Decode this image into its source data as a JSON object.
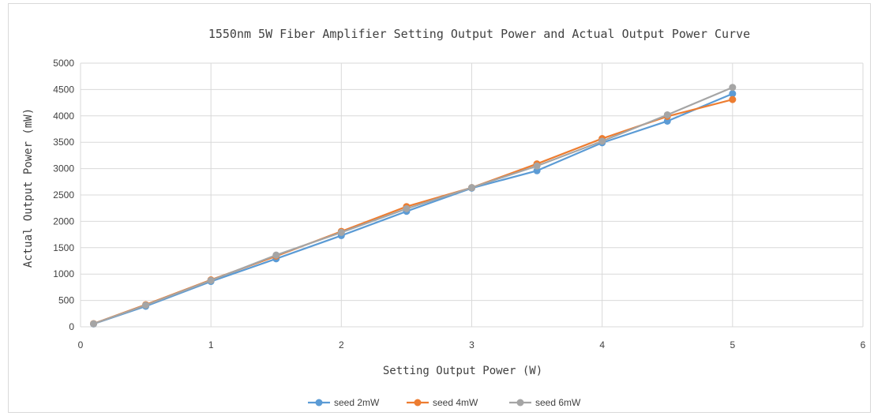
{
  "chart_data": {
    "type": "line",
    "title": "1550nm 5W Fiber Amplifier Setting Output Power and Actual Output Power Curve",
    "xlabel": "Setting Output Power (W)",
    "ylabel": "Actual Output Power (mW)",
    "xlim": [
      0,
      6
    ],
    "ylim": [
      0,
      5000
    ],
    "xticks": [
      "0",
      "1",
      "2",
      "3",
      "4",
      "5",
      "6"
    ],
    "yticks": [
      "0",
      "500",
      "1000",
      "1500",
      "2000",
      "2500",
      "3000",
      "3500",
      "4000",
      "4500",
      "5000"
    ],
    "x": [
      0.1,
      0.5,
      1,
      1.5,
      2,
      2.5,
      3,
      3.5,
      4,
      4.5,
      5
    ],
    "series": [
      {
        "name": "seed 2mW",
        "color": "#5b9bd5",
        "values": [
          55,
          390,
          860,
          1290,
          1730,
          2190,
          2630,
          2960,
          3490,
          3900,
          4420
        ]
      },
      {
        "name": "seed 4mW",
        "color": "#ed7d31",
        "values": [
          60,
          420,
          890,
          1340,
          1810,
          2280,
          2640,
          3090,
          3570,
          3990,
          4310
        ]
      },
      {
        "name": "seed 6mW",
        "color": "#a5a5a5",
        "values": [
          58,
          410,
          880,
          1360,
          1790,
          2240,
          2640,
          3050,
          3520,
          4020,
          4540
        ]
      }
    ],
    "grid": true,
    "legend": "bottom"
  }
}
